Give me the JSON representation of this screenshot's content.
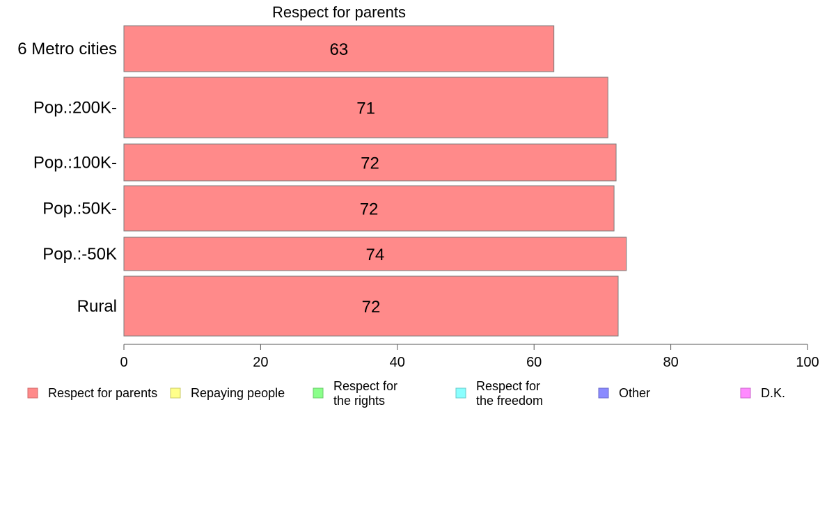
{
  "chart_data": {
    "type": "bar",
    "orientation": "horizontal",
    "title": "Respect for parents",
    "categories": [
      "6 Metro cities",
      "Pop.:200K-",
      "Pop.:100K-",
      "Pop.:50K-",
      "Pop.:-50K",
      "Rural"
    ],
    "series": [
      {
        "name": "Respect for parents",
        "color": "#ff8a8a",
        "values": [
          63,
          71,
          72,
          72,
          74,
          72
        ],
        "precise_values": [
          62.9,
          70.8,
          72.0,
          71.7,
          73.5,
          72.3
        ]
      }
    ],
    "xlim": [
      0,
      100
    ],
    "xticks": [
      0,
      20,
      40,
      60,
      80,
      100
    ],
    "grid": false,
    "legend": {
      "placement": "bottom",
      "items": [
        {
          "lines": [
            "Respect for parents"
          ],
          "color": "#ff8a8a",
          "border": "#d06a6a"
        },
        {
          "lines": [
            "Repaying people"
          ],
          "color": "#ffff8a",
          "border": "#c8c86a"
        },
        {
          "lines": [
            "Respect for",
            "the rights"
          ],
          "color": "#8aff8a",
          "border": "#6ac86a"
        },
        {
          "lines": [
            "Respect for",
            "the freedom"
          ],
          "color": "#8affff",
          "border": "#6ac8c8"
        },
        {
          "lines": [
            "Other"
          ],
          "color": "#8a8aff",
          "border": "#6a6ac8"
        },
        {
          "lines": [
            "D.K."
          ],
          "color": "#ff8aff",
          "border": "#c86ac8"
        }
      ]
    }
  }
}
